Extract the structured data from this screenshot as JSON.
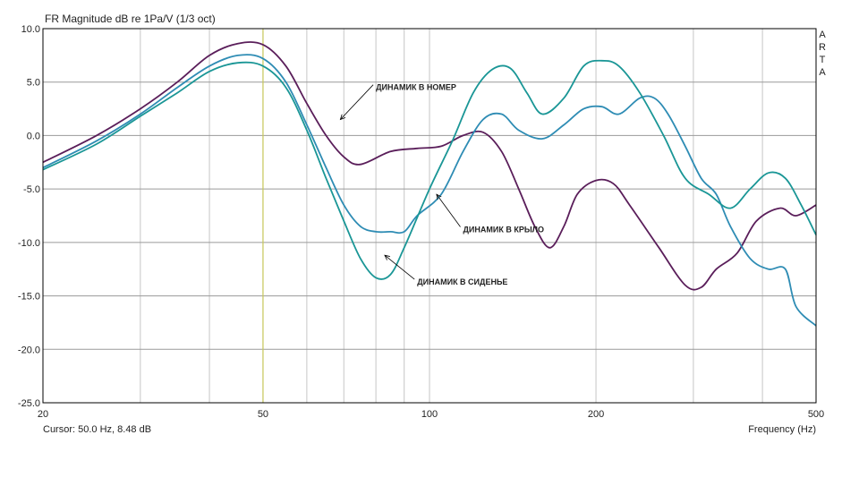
{
  "chart_data": {
    "type": "line",
    "title": "FR Magnitude dB re 1Pa/V (1/3 oct)",
    "xlabel": "Frequency (Hz)",
    "ylabel": "",
    "xscale": "log",
    "xlim": [
      20,
      500
    ],
    "ylim": [
      -25,
      10
    ],
    "grid": true,
    "x_ticks": [
      20,
      50,
      100,
      200,
      500
    ],
    "x_tick_labels": [
      "20",
      "50",
      "100",
      "200",
      "500"
    ],
    "y_ticks": [
      10,
      5,
      0,
      -5,
      -10,
      -15,
      -20,
      -25
    ],
    "y_tick_labels": [
      "10.0",
      "5.0",
      "0.0",
      "-5.0",
      "-10.0",
      "-15.0",
      "-20.0",
      "-25.0"
    ],
    "side_label": [
      "A",
      "R",
      "T",
      "A"
    ],
    "cursor": {
      "x": 50,
      "label": "Cursor: 50.0 Hz, 8.48 dB",
      "color": "#c8c85a"
    },
    "series": [
      {
        "color": "#5a1e5a",
        "points": [
          [
            20,
            -2.5
          ],
          [
            25,
            0
          ],
          [
            30,
            2.5
          ],
          [
            35,
            5
          ],
          [
            40,
            7.5
          ],
          [
            45,
            8.6
          ],
          [
            50,
            8.5
          ],
          [
            55,
            6.5
          ],
          [
            60,
            3
          ],
          [
            65,
            0
          ],
          [
            70,
            -2
          ],
          [
            75,
            -2.7
          ],
          [
            85,
            -1.5
          ],
          [
            95,
            -1.2
          ],
          [
            105,
            -1
          ],
          [
            115,
            0
          ],
          [
            125,
            0.3
          ],
          [
            135,
            -1.5
          ],
          [
            145,
            -5
          ],
          [
            155,
            -8.5
          ],
          [
            165,
            -10.5
          ],
          [
            175,
            -8.5
          ],
          [
            185,
            -5.5
          ],
          [
            200,
            -4.2
          ],
          [
            215,
            -4.5
          ],
          [
            230,
            -6.5
          ],
          [
            260,
            -10.5
          ],
          [
            290,
            -14
          ],
          [
            310,
            -14.2
          ],
          [
            330,
            -12.5
          ],
          [
            360,
            -11
          ],
          [
            390,
            -8
          ],
          [
            430,
            -6.8
          ],
          [
            460,
            -7.5
          ],
          [
            500,
            -6.5
          ]
        ]
      },
      {
        "color": "#2e8cb4",
        "points": [
          [
            20,
            -3
          ],
          [
            25,
            -0.5
          ],
          [
            30,
            2
          ],
          [
            35,
            4.5
          ],
          [
            40,
            6.5
          ],
          [
            45,
            7.5
          ],
          [
            50,
            7.2
          ],
          [
            55,
            5
          ],
          [
            60,
            1
          ],
          [
            65,
            -3
          ],
          [
            70,
            -6.5
          ],
          [
            75,
            -8.5
          ],
          [
            80,
            -9
          ],
          [
            85,
            -9
          ],
          [
            90,
            -9
          ],
          [
            95,
            -7.5
          ],
          [
            105,
            -5.5
          ],
          [
            115,
            -1.5
          ],
          [
            125,
            1.5
          ],
          [
            135,
            2
          ],
          [
            145,
            0.5
          ],
          [
            160,
            -0.3
          ],
          [
            175,
            1
          ],
          [
            190,
            2.5
          ],
          [
            205,
            2.7
          ],
          [
            220,
            2
          ],
          [
            240,
            3.5
          ],
          [
            255,
            3.5
          ],
          [
            270,
            2
          ],
          [
            290,
            -1
          ],
          [
            310,
            -4
          ],
          [
            330,
            -5.5
          ],
          [
            350,
            -8.5
          ],
          [
            380,
            -11.5
          ],
          [
            410,
            -12.5
          ],
          [
            440,
            -12.5
          ],
          [
            460,
            -16
          ],
          [
            500,
            -17.8
          ]
        ]
      },
      {
        "color": "#1a9696",
        "points": [
          [
            20,
            -3.2
          ],
          [
            25,
            -0.8
          ],
          [
            30,
            1.8
          ],
          [
            35,
            4
          ],
          [
            40,
            6
          ],
          [
            45,
            6.8
          ],
          [
            50,
            6.5
          ],
          [
            55,
            4.5
          ],
          [
            60,
            0.5
          ],
          [
            65,
            -4
          ],
          [
            70,
            -8
          ],
          [
            75,
            -11.5
          ],
          [
            80,
            -13.3
          ],
          [
            85,
            -13
          ],
          [
            90,
            -10.5
          ],
          [
            100,
            -5
          ],
          [
            110,
            -0.5
          ],
          [
            120,
            4
          ],
          [
            130,
            6.2
          ],
          [
            140,
            6.3
          ],
          [
            150,
            4
          ],
          [
            160,
            2
          ],
          [
            175,
            3.5
          ],
          [
            190,
            6.5
          ],
          [
            205,
            7
          ],
          [
            220,
            6.5
          ],
          [
            240,
            4
          ],
          [
            265,
            0
          ],
          [
            290,
            -4
          ],
          [
            320,
            -5.5
          ],
          [
            350,
            -6.8
          ],
          [
            380,
            -5
          ],
          [
            410,
            -3.5
          ],
          [
            440,
            -4
          ],
          [
            470,
            -6.5
          ],
          [
            500,
            -9.3
          ]
        ]
      }
    ],
    "annotations": [
      {
        "text": "ДИНАМИК В НОМЕР",
        "x": 80,
        "y": 4.5,
        "point_x": 69,
        "point_y": 1.5
      },
      {
        "text": "ДИНАМИК В КРЫЛО",
        "x": 115,
        "y": -8.8,
        "point_x": 103,
        "point_y": -5.5
      },
      {
        "text": "ДИНАМИК В СИДЕНЬЕ",
        "x": 95,
        "y": -13.7,
        "point_x": 83,
        "point_y": -11.2
      }
    ]
  }
}
